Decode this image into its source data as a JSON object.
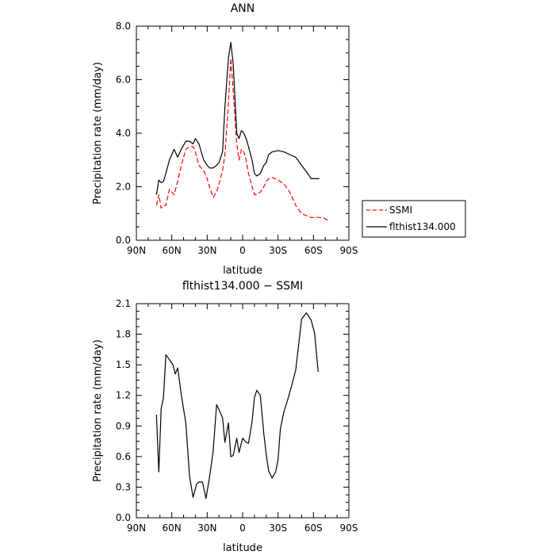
{
  "chart_data": [
    {
      "type": "line",
      "title": "ANN",
      "xlabel": "latitude",
      "ylabel": "Precipitation rate (mm/day)",
      "xlim": [
        90,
        -90
      ],
      "ylim": [
        0,
        8
      ],
      "x_ticks": [
        90,
        60,
        30,
        0,
        -30,
        -60,
        -90
      ],
      "x_tick_labels": [
        "90N",
        "60N",
        "30N",
        "0",
        "30S",
        "60S",
        "90S"
      ],
      "y_ticks": [
        0,
        2,
        4,
        6,
        8
      ],
      "y_tick_labels": [
        "0.0",
        "2.0",
        "4.0",
        "6.0",
        "8.0"
      ],
      "legend_position": "right",
      "series": [
        {
          "name": "SSMI",
          "color": "#ff0000",
          "dash": "dashed",
          "x": [
            73,
            71,
            69,
            67,
            65,
            62,
            58,
            55,
            52,
            48,
            45,
            42,
            40,
            37,
            33,
            30,
            28,
            25,
            22,
            20,
            17,
            15,
            12,
            10,
            8,
            5,
            3,
            1,
            -1,
            -3,
            -5,
            -8,
            -10,
            -12,
            -15,
            -18,
            -20,
            -22,
            -25,
            -30,
            -35,
            -40,
            -45,
            -50,
            -55,
            -58,
            -62,
            -65,
            -68,
            -72
          ],
          "y": [
            1.3,
            1.7,
            1.2,
            1.3,
            1.3,
            1.9,
            1.7,
            2.2,
            2.8,
            3.4,
            3.5,
            3.5,
            3.3,
            2.8,
            2.6,
            2.3,
            2.0,
            1.6,
            1.8,
            2.1,
            2.6,
            3.2,
            5.1,
            6.8,
            5.6,
            3.6,
            3.0,
            3.4,
            3.3,
            3.0,
            2.5,
            2.0,
            1.7,
            1.7,
            1.8,
            2.0,
            2.2,
            2.3,
            2.35,
            2.25,
            2.1,
            1.8,
            1.3,
            1.0,
            0.9,
            0.85,
            0.85,
            0.85,
            0.85,
            0.75
          ]
        },
        {
          "name": "flthist134.000",
          "color": "#000000",
          "dash": "solid",
          "x": [
            73,
            71,
            69,
            67,
            65,
            62,
            58,
            55,
            52,
            48,
            45,
            42,
            40,
            37,
            33,
            30,
            28,
            25,
            22,
            20,
            17,
            15,
            12,
            10,
            8,
            5,
            3,
            1,
            -1,
            -3,
            -5,
            -8,
            -10,
            -12,
            -15,
            -18,
            -20,
            -22,
            -25,
            -30,
            -35,
            -40,
            -45,
            -50,
            -55,
            -58,
            -62,
            -65
          ],
          "y": [
            1.7,
            2.25,
            2.15,
            2.2,
            2.5,
            3.0,
            3.4,
            3.1,
            3.4,
            3.7,
            3.7,
            3.6,
            3.8,
            3.6,
            3.0,
            2.8,
            2.7,
            2.7,
            2.8,
            2.9,
            3.3,
            5.0,
            6.8,
            7.4,
            6.6,
            4.0,
            3.8,
            4.1,
            4.0,
            3.8,
            3.5,
            3.0,
            2.5,
            2.4,
            2.5,
            2.8,
            2.9,
            3.2,
            3.3,
            3.35,
            3.3,
            3.2,
            3.1,
            2.8,
            2.5,
            2.3,
            2.3,
            2.3
          ]
        }
      ]
    },
    {
      "type": "line",
      "title": "flthist134.000 − SSMI",
      "xlabel": "latitude",
      "ylabel": "Precipitation rate (mm/day)",
      "xlim": [
        90,
        -90
      ],
      "ylim": [
        0,
        2.1
      ],
      "x_ticks": [
        90,
        60,
        30,
        0,
        -30,
        -60,
        -90
      ],
      "x_tick_labels": [
        "90N",
        "60N",
        "30N",
        "0",
        "30S",
        "60S",
        "90S"
      ],
      "y_ticks": [
        0,
        0.3,
        0.6,
        0.9,
        1.2,
        1.5,
        1.8,
        2.1
      ],
      "y_tick_labels": [
        "0.0",
        "0.3",
        "0.6",
        "0.9",
        "1.2",
        "1.5",
        "1.8",
        "2.1"
      ],
      "series": [
        {
          "color": "#000000",
          "dash": "solid",
          "x": [
            73,
            71,
            69,
            67,
            65,
            62,
            59,
            57,
            55,
            52,
            48,
            45,
            42,
            39,
            37,
            34,
            31,
            28,
            25,
            22,
            20,
            17,
            15,
            12,
            10,
            8,
            5,
            3,
            0,
            -3,
            -5,
            -8,
            -10,
            -12,
            -15,
            -18,
            -20,
            -22,
            -25,
            -28,
            -30,
            -32,
            -35,
            -38,
            -41,
            -45,
            -50,
            -54,
            -58,
            -61,
            -64
          ],
          "y": [
            1.01,
            0.45,
            1.07,
            1.18,
            1.6,
            1.55,
            1.5,
            1.41,
            1.47,
            1.21,
            0.92,
            0.41,
            0.2,
            0.33,
            0.35,
            0.35,
            0.19,
            0.4,
            0.65,
            1.11,
            1.06,
            0.98,
            0.74,
            0.93,
            0.6,
            0.61,
            0.78,
            0.64,
            0.78,
            0.74,
            0.73,
            0.94,
            1.18,
            1.25,
            1.2,
            0.82,
            0.62,
            0.46,
            0.39,
            0.45,
            0.57,
            0.87,
            1.04,
            1.15,
            1.27,
            1.45,
            1.95,
            2.01,
            1.94,
            1.81,
            1.43
          ]
        }
      ]
    }
  ]
}
